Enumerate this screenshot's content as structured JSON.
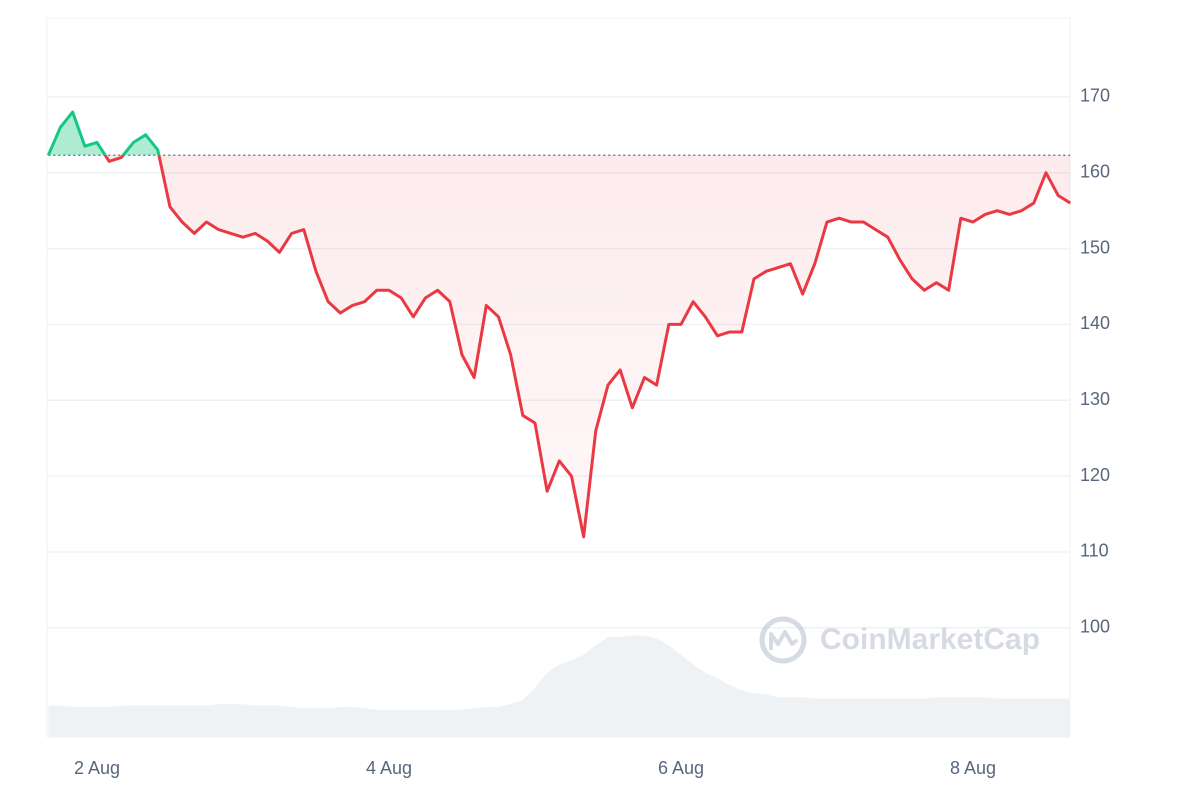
{
  "chart_data": {
    "type": "line",
    "categories": [
      null,
      null,
      null,
      null,
      "2 Aug",
      null,
      null,
      null,
      null,
      null,
      null,
      null,
      null,
      null,
      null,
      null,
      null,
      null,
      null,
      null,
      null,
      null,
      null,
      null,
      null,
      null,
      null,
      null,
      "4 Aug",
      null,
      null,
      null,
      null,
      null,
      null,
      null,
      null,
      null,
      null,
      null,
      null,
      null,
      null,
      null,
      null,
      null,
      null,
      null,
      null,
      null,
      null,
      null,
      "6 Aug",
      null,
      null,
      null,
      null,
      null,
      null,
      null,
      null,
      null,
      null,
      null,
      null,
      null,
      null,
      null,
      null,
      null,
      null,
      null,
      null,
      null,
      null,
      null,
      "8 Aug",
      null,
      null,
      null,
      null,
      null,
      null,
      null,
      null
    ],
    "series": [
      {
        "name": "Price",
        "values": [
          162.3,
          166,
          168,
          163.5,
          164,
          161.5,
          162,
          164,
          165,
          163,
          155.5,
          153.5,
          152,
          153.5,
          152.5,
          152,
          151.5,
          152,
          151,
          149.5,
          152,
          152.5,
          147,
          143,
          141.5,
          142.5,
          143,
          144.5,
          144.5,
          143.5,
          141,
          143.5,
          144.5,
          143,
          136,
          133,
          142.5,
          141,
          136,
          128,
          127,
          118,
          122,
          120,
          112,
          126,
          132,
          134,
          129,
          133,
          132,
          140,
          140,
          143,
          141,
          138.5,
          139,
          139,
          146,
          147,
          147.5,
          148,
          144,
          148,
          153.5,
          154,
          153.5,
          153.5,
          152.5,
          151.5,
          148.5,
          146,
          144.5,
          145.5,
          144.5,
          154,
          153.5,
          154.5,
          155,
          154.5,
          155,
          156,
          160,
          157,
          156
        ]
      },
      {
        "name": "Volume",
        "color": "#eff2f5",
        "values": [
          23,
          23,
          22,
          22,
          22,
          22,
          23,
          23,
          23,
          23,
          23,
          23,
          23,
          23,
          24,
          24,
          24,
          23,
          23,
          23,
          22,
          21,
          21,
          21,
          22,
          22,
          21,
          20,
          20,
          20,
          20,
          20,
          20,
          20,
          20,
          21,
          22,
          22,
          24,
          27,
          36,
          47,
          53,
          56,
          60,
          67,
          73,
          73,
          74,
          74,
          72,
          67,
          60,
          53,
          47,
          43,
          38,
          34,
          32,
          31,
          29,
          29,
          29,
          28,
          28,
          28,
          28,
          28,
          28,
          28,
          28,
          28,
          28,
          29,
          29,
          29,
          29,
          29,
          28,
          28,
          28,
          28,
          28,
          28,
          28
        ]
      }
    ],
    "reference_value": 162.3,
    "up_color": "#16c784",
    "down_color": "#ea3943",
    "ylim": [
      85.6,
      180.4
    ],
    "yticks": [
      100,
      110,
      120,
      130,
      140,
      150,
      160,
      170
    ],
    "volume_lim": [
      0,
      100
    ],
    "grid": true,
    "watermark": "CoinMarketCap"
  }
}
